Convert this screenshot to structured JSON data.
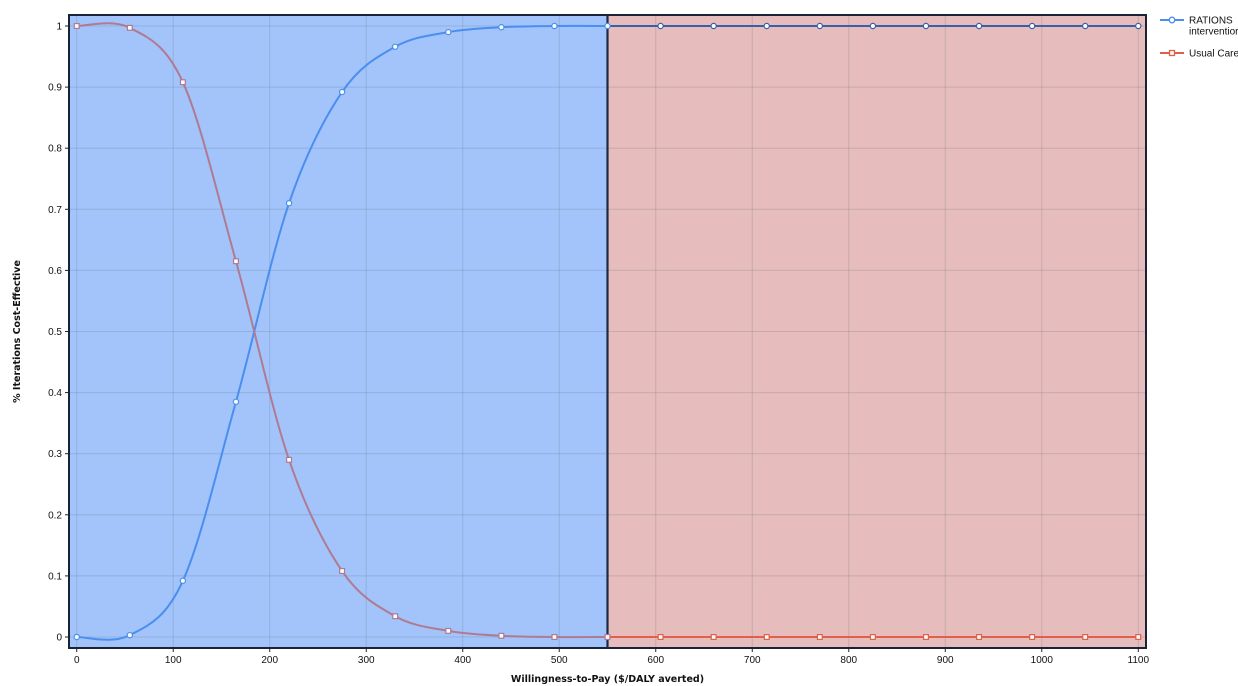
{
  "chart_data": {
    "type": "line",
    "title": "",
    "xlabel": "Willingness-to-Pay ($/DALY averted)",
    "ylabel": "% Iterations Cost-Effective",
    "xlim": [
      -8,
      1108
    ],
    "ylim": [
      -0.018,
      1.018
    ],
    "x_ticks": [
      0,
      100,
      200,
      300,
      400,
      500,
      600,
      700,
      800,
      900,
      1000,
      1100
    ],
    "y_ticks": [
      0,
      0.1,
      0.2,
      0.3,
      0.4,
      0.5,
      0.6,
      0.7,
      0.8,
      0.9,
      1
    ],
    "grid": true,
    "legend_position": "right",
    "threshold_x": 550,
    "regions": [
      {
        "from": -8,
        "to": 550,
        "color": "#a2c4fa"
      },
      {
        "from": 550,
        "to": 1108,
        "color": "#e6bcbc"
      }
    ],
    "x": [
      0,
      55,
      110,
      165,
      220,
      275,
      330,
      385,
      440,
      495,
      550,
      605,
      660,
      715,
      770,
      825,
      880,
      935,
      990,
      1045,
      1100
    ],
    "series": [
      {
        "name": "RATIONS intervention",
        "legend_label": "RATIONS\ninterventior",
        "color": "#4a8ef0",
        "upper_color": "#3a5fa8",
        "marker": "circle",
        "values": [
          0,
          0.003,
          0.092,
          0.385,
          0.71,
          0.892,
          0.966,
          0.99,
          0.998,
          1,
          1,
          1,
          1,
          1,
          1,
          1,
          1,
          1,
          1,
          1,
          1
        ]
      },
      {
        "name": "Usual Care",
        "legend_label": "Usual Care",
        "color": "#b07a93",
        "upper_color": "#e0604a",
        "marker": "square",
        "values": [
          1,
          0.997,
          0.908,
          0.615,
          0.29,
          0.108,
          0.034,
          0.01,
          0.002,
          0,
          0,
          0,
          0,
          0,
          0,
          0,
          0,
          0,
          0,
          0,
          0
        ]
      }
    ]
  }
}
